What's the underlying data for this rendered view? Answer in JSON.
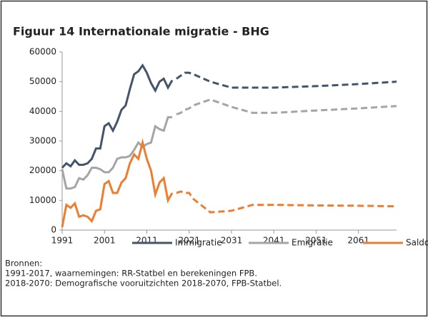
{
  "chart_data": {
    "type": "line",
    "title": "Figuur 14    Internationale migratie - BHG",
    "x": [
      1991,
      1992,
      1993,
      1994,
      1995,
      1996,
      1997,
      1998,
      1999,
      2000,
      2001,
      2002,
      2003,
      2004,
      2005,
      2006,
      2007,
      2008,
      2009,
      2010,
      2011,
      2012,
      2013,
      2014,
      2015,
      2016,
      2017,
      2018,
      2019,
      2020,
      2021,
      2022,
      2026,
      2031,
      2036,
      2041,
      2051,
      2061,
      2070
    ],
    "projection_start": 2018,
    "series": [
      {
        "name": "Immigratie",
        "color": "#44546a",
        "values": [
          21000,
          22500,
          21500,
          23500,
          22000,
          22000,
          22500,
          24000,
          27500,
          27500,
          35000,
          36000,
          33500,
          36500,
          40500,
          42000,
          47500,
          52500,
          53500,
          55500,
          53000,
          49500,
          47000,
          50000,
          51000,
          48000,
          50500,
          51000,
          52000,
          53000,
          53000,
          52500,
          50000,
          48000,
          48000,
          48000,
          48500,
          49200,
          50000
        ]
      },
      {
        "name": "Emigratie",
        "color": "#a5a5a5",
        "values": [
          20500,
          14000,
          14000,
          14500,
          17500,
          17000,
          18500,
          21000,
          21000,
          20500,
          19500,
          19500,
          21000,
          24000,
          24500,
          24500,
          25000,
          27000,
          29500,
          28000,
          29000,
          29500,
          35000,
          34000,
          33500,
          38000,
          38000,
          39000,
          39500,
          40500,
          41000,
          42000,
          44000,
          41500,
          39500,
          39500,
          40300,
          41000,
          41800
        ]
      },
      {
        "name": "Saldo",
        "color": "#ed7d31",
        "values": [
          1000,
          8500,
          7500,
          9000,
          4500,
          5000,
          4500,
          3000,
          6500,
          7000,
          15500,
          16500,
          12500,
          12500,
          16000,
          17500,
          22500,
          25500,
          24000,
          29500,
          24000,
          20000,
          12000,
          16000,
          17500,
          10000,
          12500,
          12500,
          13000,
          12500,
          12500,
          10500,
          6000,
          6500,
          8500,
          8500,
          8300,
          8200,
          8000
        ]
      }
    ],
    "xlim": [
      1991,
      2070
    ],
    "xticks": [
      1991,
      2001,
      2011,
      2021,
      2031,
      2041,
      2051,
      2061
    ],
    "ylim": [
      0,
      60000
    ],
    "yticks": [
      0,
      10000,
      20000,
      30000,
      40000,
      50000,
      60000
    ],
    "grid": false,
    "sources": [
      "Bronnen:",
      "1991-2017, waarnemingen: RR-Statbel en berekeningen FPB.",
      "2018-2070: Demografische vooruitzichten 2018-2070, FPB-Statbel."
    ]
  }
}
